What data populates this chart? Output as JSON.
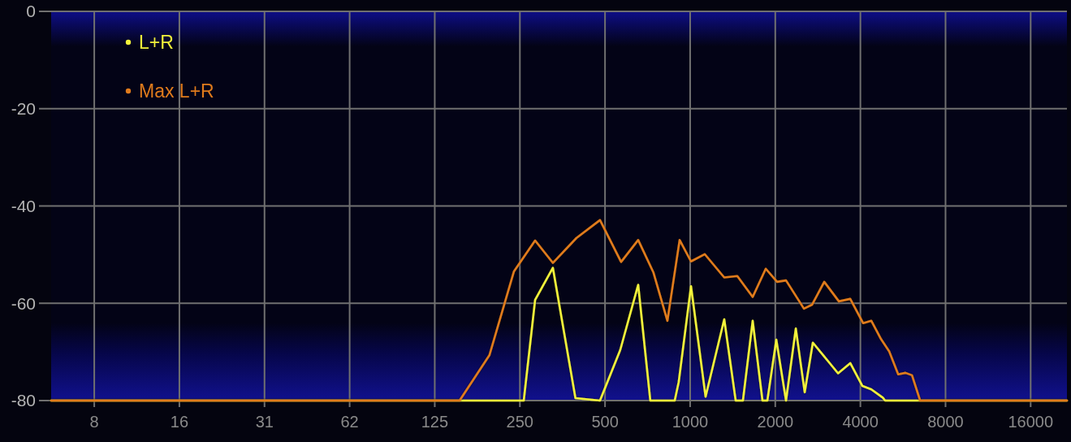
{
  "chart_data": {
    "type": "line",
    "log": "x",
    "xlim": [
      5.5,
      21500
    ],
    "xticks": [
      {
        "value": 7.8125,
        "label": "8"
      },
      {
        "value": 15.625,
        "label": "16"
      },
      {
        "value": 31.25,
        "label": "31"
      },
      {
        "value": 62.5,
        "label": "62"
      },
      125,
      250,
      500,
      1000,
      2000,
      4000,
      8000,
      16000
    ],
    "ylim": [
      -80,
      0
    ],
    "yticks": [
      0,
      -20,
      -40,
      -60,
      -80
    ],
    "grid": true,
    "legend": "top left",
    "series": [
      {
        "name": "L+R",
        "color": "#f2f23a",
        "x": [
          5.5,
          258,
          283,
          327,
          393,
          480,
          566,
          655,
          723,
          882,
          911,
          1007,
          1134,
          1320,
          1449,
          1537,
          1664,
          1802,
          1875,
          2017,
          2183,
          2364,
          2542,
          2716,
          3335,
          3683,
          4067,
          4373,
          4798,
          4894,
          21500
        ],
        "values": [
          -80,
          -80,
          -59.3,
          -52.7,
          -79.5,
          -80,
          -69.6,
          -56.2,
          -80,
          -80,
          -76.2,
          -56.5,
          -79.2,
          -63.3,
          -80,
          -80,
          -63.6,
          -80,
          -80,
          -67.5,
          -80,
          -65.2,
          -78.3,
          -68.1,
          -74.4,
          -72.3,
          -77.0,
          -77.7,
          -79.4,
          -80,
          -80
        ]
      },
      {
        "name": "Max L+R",
        "color": "#e07b1c",
        "x": [
          5.5,
          153,
          195,
          238,
          283,
          327,
          396,
          480,
          570,
          655,
          742,
          831,
          918,
          1007,
          1126,
          1320,
          1468,
          1664,
          1851,
          2030,
          2183,
          2526,
          2698,
          2980,
          3357,
          3683,
          4093,
          4373,
          4735,
          5058,
          5442,
          5775,
          6089,
          6506,
          21500
        ],
        "values": [
          -80,
          -80,
          -70.7,
          -53.5,
          -47.1,
          -51.7,
          -46.6,
          -42.9,
          -51.5,
          -47.0,
          -53.7,
          -63.6,
          -47.0,
          -51.4,
          -49.9,
          -54.7,
          -54.4,
          -58.7,
          -52.9,
          -55.6,
          -55.3,
          -61.1,
          -60.3,
          -55.6,
          -59.6,
          -59.1,
          -64.1,
          -63.6,
          -67.4,
          -69.9,
          -74.6,
          -74.3,
          -74.8,
          -80,
          -80
        ]
      }
    ]
  }
}
